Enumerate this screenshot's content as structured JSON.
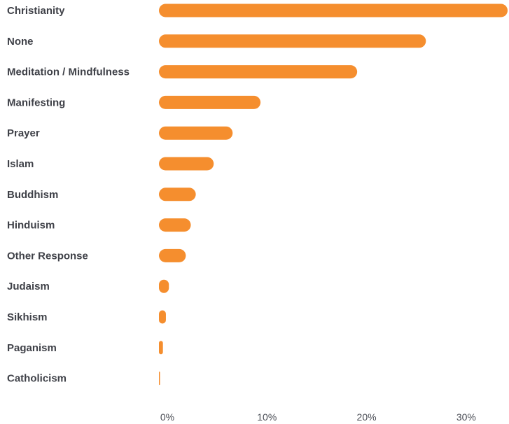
{
  "chart_data": {
    "type": "bar",
    "orientation": "horizontal",
    "title": "",
    "xlabel": "",
    "ylabel": "",
    "categories": [
      "Christianity",
      "None",
      "Meditation / Mindfulness",
      "Manifesting",
      "Prayer",
      "Islam",
      "Buddhism",
      "Hinduism",
      "Other Response",
      "Judaism",
      "Sikhism",
      "Paganism",
      "Catholicism"
    ],
    "values": [
      35.0,
      26.8,
      19.9,
      10.2,
      7.4,
      5.5,
      3.7,
      3.2,
      2.7,
      1.0,
      0.7,
      0.4,
      0.1
    ],
    "xlim": [
      0,
      35
    ],
    "xticks": [
      0,
      10,
      20,
      30
    ],
    "xtick_labels": [
      "0%",
      "10%",
      "20%",
      "30%"
    ],
    "grid": false,
    "legend": "none",
    "colors": {
      "bar": "#F58E2E",
      "label": "#3F4148",
      "tick": "#4A4D55"
    }
  }
}
